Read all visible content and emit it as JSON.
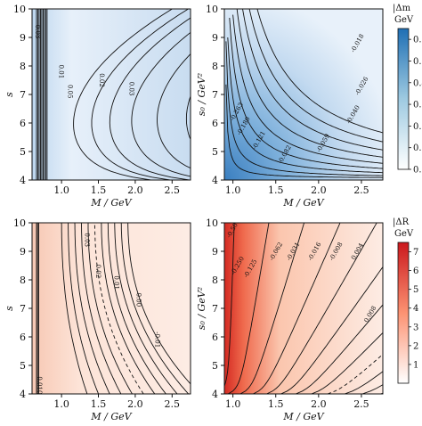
{
  "chart_data": [
    {
      "type": "heatmap",
      "panel": "top-left",
      "xlabel": "M / GeV",
      "ylabel": "s",
      "xlim": [
        0.6,
        2.75
      ],
      "ylim": [
        4,
        10
      ],
      "x_ticks": [
        "1.0",
        "1.5",
        "2.0",
        "2.5"
      ],
      "y_ticks": [
        "4",
        "5",
        "6",
        "7",
        "8",
        "9",
        "10"
      ],
      "colormap": [
        "#f7fbff",
        "#c6dbef",
        "#2171b5"
      ],
      "contour_labels": [
        "0.03",
        "0.05",
        "0.01",
        "0.02",
        "0.03"
      ],
      "contour_style": "hyperbolic"
    },
    {
      "type": "heatmap",
      "panel": "top-right",
      "xlabel": "M / GeV",
      "ylabel": "s₀ / GeV²",
      "xlim": [
        0.9,
        2.75
      ],
      "ylim": [
        4,
        10
      ],
      "x_ticks": [
        "1.0",
        "1.5",
        "2.0",
        "2.5"
      ],
      "y_ticks": [
        "4",
        "5",
        "6",
        "7",
        "8",
        "9",
        "10"
      ],
      "colormap": [
        "#f7fbff",
        "#c6dbef",
        "#2171b5"
      ],
      "contour_labels": [
        "-0.018",
        "-0.026",
        "-0.040",
        "-0.059",
        "-0.082",
        "-0.121",
        "-0.180",
        "-0.263"
      ],
      "colorbar": {
        "title_line1": "|Δm",
        "title_line2": "GeV",
        "ticks": [
          "0.0",
          "0.1",
          "0.2",
          "0.3",
          "0.4",
          "0.5",
          "0.6"
        ],
        "min": 0,
        "max": 0.65
      }
    },
    {
      "type": "heatmap",
      "panel": "bottom-left",
      "xlabel": "M / GeV",
      "ylabel": "s",
      "xlim": [
        0.6,
        2.75
      ],
      "ylim": [
        4,
        10
      ],
      "x_ticks": [
        "1.0",
        "1.5",
        "2.0",
        "2.5"
      ],
      "y_ticks": [
        "4",
        "5",
        "6",
        "7",
        "8",
        "9",
        "10"
      ],
      "colormap": [
        "#fff5f0",
        "#fcbba1",
        "#cb181d"
      ],
      "contour_labels": [
        "0.03",
        "0.02",
        "0.01",
        "0.00",
        "-0.01",
        "0.010"
      ],
      "dashed_contour_label": "0.00"
    },
    {
      "type": "heatmap",
      "panel": "bottom-right",
      "xlabel": "M / GeV",
      "ylabel": "s₀ / GeV²",
      "xlim": [
        0.9,
        2.75
      ],
      "ylim": [
        4,
        10
      ],
      "x_ticks": [
        "1.0",
        "1.5",
        "2.0",
        "2.5"
      ],
      "y_ticks": [
        "4",
        "5",
        "6",
        "7",
        "8",
        "9",
        "10"
      ],
      "colormap": [
        "#fff5f0",
        "#fcbba1",
        "#cb181d"
      ],
      "contour_labels": [
        "-0.500",
        "-0.250",
        "-0.125",
        "-0.062",
        "-0.031",
        "-0.016",
        "-0.008",
        "0.004",
        "0.008"
      ],
      "colorbar": {
        "title_line1": "|ΔR",
        "title_line2": "GeV",
        "ticks": [
          "1",
          "2",
          "3",
          "4",
          "5",
          "6",
          "7"
        ],
        "min": 0,
        "max": 7.5
      }
    }
  ]
}
